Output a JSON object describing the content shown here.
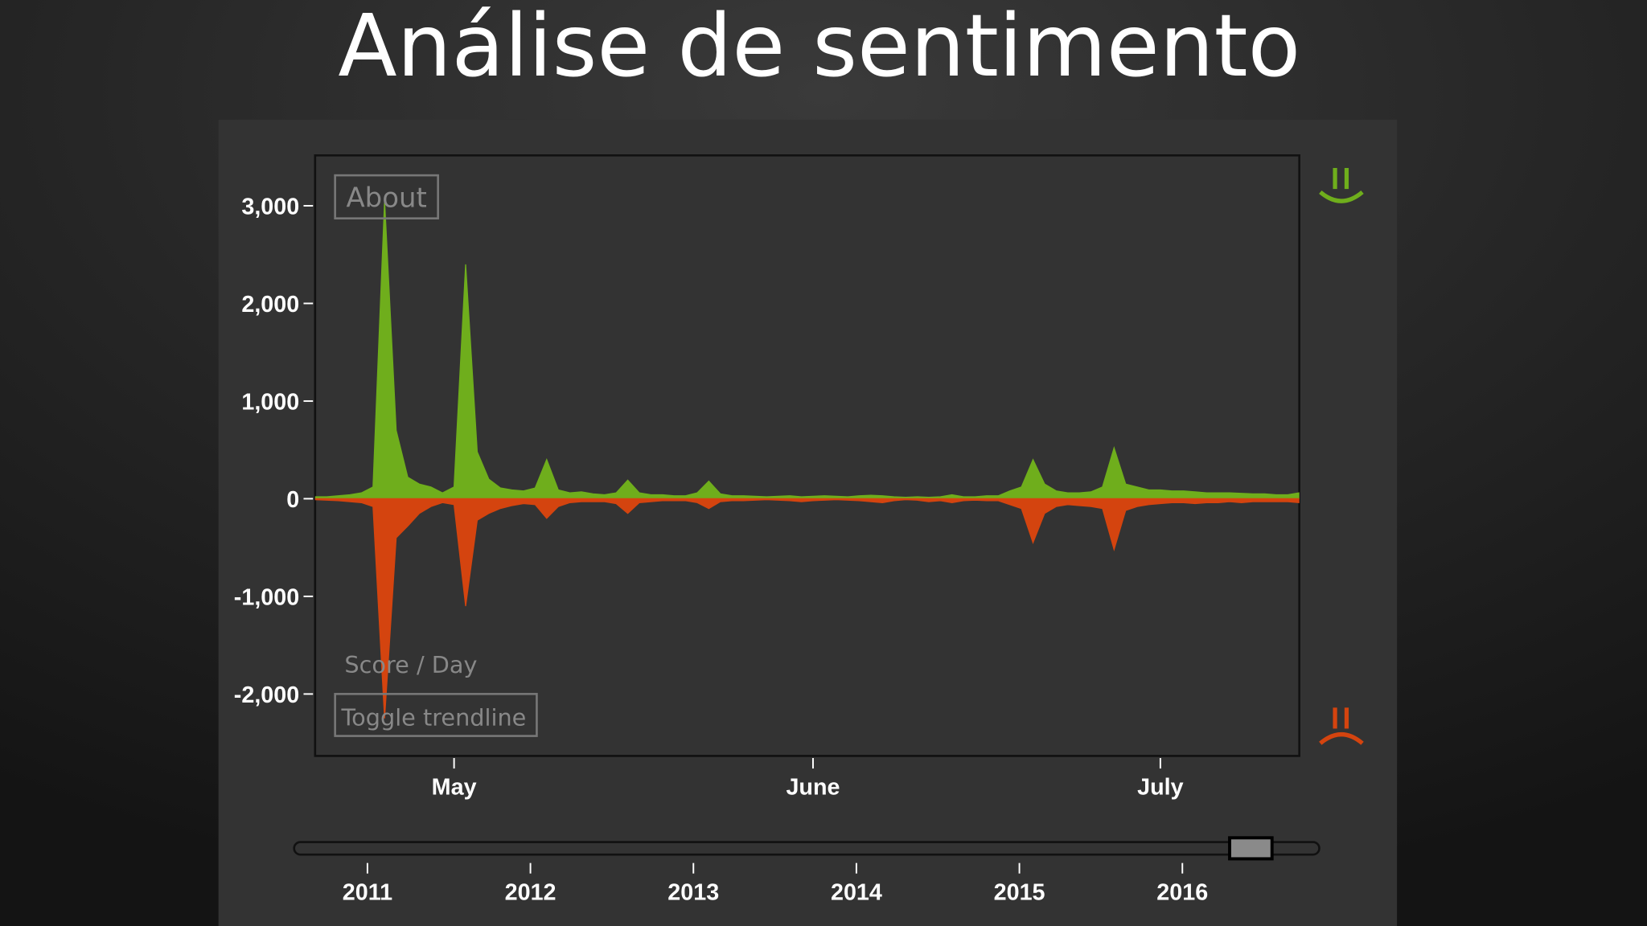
{
  "chart_data": {
    "type": "area",
    "title": "Análise de sentimento",
    "about_button": "About",
    "y_label": "Score / Day",
    "toggle_button": "Toggle trendline",
    "categories": [
      null,
      null,
      null,
      null,
      null,
      null,
      null,
      null,
      null,
      null,
      null,
      null,
      "May",
      null,
      null,
      null,
      null,
      null,
      null,
      null,
      null,
      null,
      null,
      null,
      null,
      null,
      null,
      null,
      null,
      null,
      null,
      null,
      null,
      null,
      null,
      null,
      null,
      null,
      null,
      null,
      null,
      null,
      null,
      "June",
      null,
      null,
      null,
      null,
      null,
      null,
      null,
      null,
      null,
      null,
      null,
      null,
      null,
      null,
      null,
      null,
      null,
      null,
      null,
      null,
      null,
      null,
      null,
      null,
      null,
      null,
      null,
      null,
      null,
      "July",
      null,
      null,
      null,
      null,
      null,
      null,
      null,
      null,
      null,
      null,
      null,
      null
    ],
    "series": [
      {
        "color": "#6fae1c",
        "values": [
          20,
          20,
          30,
          40,
          60,
          120,
          3050,
          700,
          220,
          150,
          120,
          60,
          120,
          2400,
          480,
          200,
          110,
          90,
          80,
          110,
          400,
          90,
          60,
          70,
          50,
          40,
          60,
          190,
          60,
          40,
          40,
          30,
          30,
          60,
          180,
          50,
          30,
          30,
          25,
          20,
          25,
          30,
          20,
          25,
          30,
          25,
          20,
          30,
          35,
          30,
          20,
          15,
          20,
          15,
          20,
          40,
          20,
          20,
          30,
          30,
          80,
          120,
          400,
          150,
          80,
          60,
          60,
          70,
          120,
          520,
          150,
          120,
          90,
          90,
          80,
          80,
          70,
          60,
          60,
          60,
          55,
          50,
          50,
          40,
          40,
          60
        ]
      },
      {
        "color": "#d4440f",
        "values": [
          -10,
          -15,
          -20,
          -30,
          -40,
          -80,
          -2250,
          -400,
          -280,
          -150,
          -80,
          -40,
          -60,
          -1100,
          -220,
          -150,
          -100,
          -70,
          -50,
          -60,
          -200,
          -80,
          -40,
          -30,
          -30,
          -30,
          -50,
          -150,
          -40,
          -30,
          -20,
          -20,
          -20,
          -40,
          -100,
          -30,
          -20,
          -20,
          -15,
          -10,
          -15,
          -20,
          -30,
          -20,
          -15,
          -10,
          -15,
          -20,
          -30,
          -40,
          -20,
          -10,
          -15,
          -30,
          -20,
          -40,
          -20,
          -15,
          -20,
          -20,
          -60,
          -100,
          -450,
          -150,
          -80,
          -60,
          -70,
          -80,
          -100,
          -520,
          -120,
          -80,
          -60,
          -50,
          -40,
          -40,
          -50,
          -40,
          -40,
          -30,
          -40,
          -30,
          -30,
          -30,
          -30,
          -40
        ]
      }
    ],
    "ylim": [
      -2634,
      3516
    ],
    "yticks": [
      {
        "value": -2000,
        "label": "-2,000"
      },
      {
        "value": -1000,
        "label": "-1,000"
      },
      0,
      {
        "value": 1000,
        "label": "1,000"
      },
      {
        "value": 2000,
        "label": "2,000"
      },
      {
        "value": 3000,
        "label": "3,000"
      }
    ],
    "grid": false,
    "slider": {
      "xlim": [
        2010.55,
        2016.84
      ],
      "xticks": [
        2011,
        2012,
        2013,
        2014,
        2015,
        2016
      ],
      "selection": [
        2016.29,
        2016.55
      ]
    }
  }
}
